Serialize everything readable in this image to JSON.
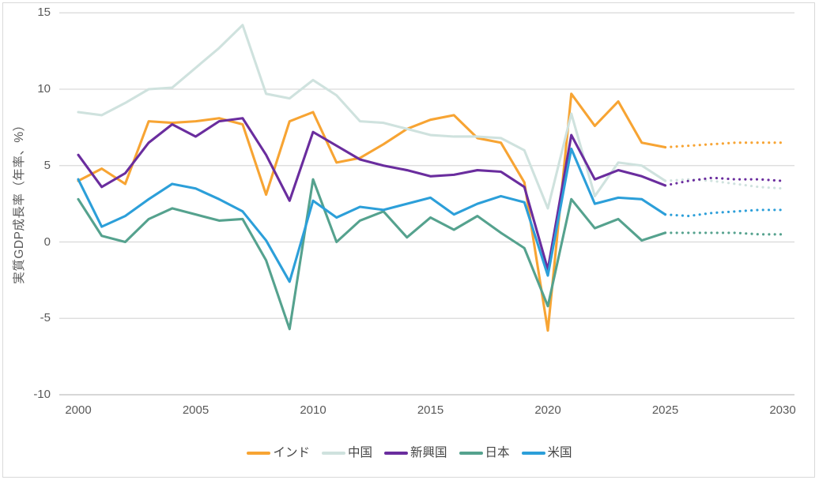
{
  "chart": {
    "y_axis": {
      "label": "実質GDP成長率（年率、%）",
      "ticks": [
        15,
        10,
        5,
        0,
        -5,
        -10
      ],
      "min": -10,
      "max": 15
    },
    "x_axis": {
      "ticks": [
        2000,
        2005,
        2010,
        2015,
        2020,
        2025,
        2030
      ],
      "min": 2000,
      "max": 2030
    }
  },
  "chart_data": {
    "type": "line",
    "title": "",
    "xlabel": "",
    "ylabel": "実質GDP成長率（年率、%）",
    "ylim": [
      -10,
      15
    ],
    "xlim": [
      2000,
      2030
    ],
    "grid": "horizontal",
    "legend_position": "bottom",
    "forecast_start": 2025,
    "forecast_style": "dotted",
    "x": [
      2000,
      2001,
      2002,
      2003,
      2004,
      2005,
      2006,
      2007,
      2008,
      2009,
      2010,
      2011,
      2012,
      2013,
      2014,
      2015,
      2016,
      2017,
      2018,
      2019,
      2020,
      2021,
      2022,
      2023,
      2024,
      2025,
      2026,
      2027,
      2028,
      2029,
      2030
    ],
    "series": [
      {
        "id": "india",
        "name": "インド",
        "color": "#F7A433",
        "values": [
          4.0,
          4.8,
          3.8,
          7.9,
          7.8,
          7.9,
          8.1,
          7.7,
          3.1,
          7.9,
          8.5,
          5.2,
          5.5,
          6.4,
          7.4,
          8.0,
          8.3,
          6.8,
          6.5,
          3.9,
          -5.8,
          9.7,
          7.6,
          9.2,
          6.5,
          6.2,
          6.3,
          6.4,
          6.5,
          6.5,
          6.5
        ]
      },
      {
        "id": "china",
        "name": "中国",
        "color": "#CFE2DE",
        "values": [
          8.5,
          8.3,
          9.1,
          10.0,
          10.1,
          11.4,
          12.7,
          14.2,
          9.7,
          9.4,
          10.6,
          9.6,
          7.9,
          7.8,
          7.4,
          7.0,
          6.9,
          6.9,
          6.8,
          6.0,
          2.2,
          8.4,
          3.0,
          5.2,
          5.0,
          4.0,
          4.1,
          4.0,
          3.8,
          3.6,
          3.5
        ]
      },
      {
        "id": "emerging",
        "name": "新興国",
        "color": "#6A2D9E",
        "values": [
          5.7,
          3.6,
          4.5,
          6.5,
          7.7,
          6.9,
          7.9,
          8.1,
          5.7,
          2.7,
          7.2,
          6.3,
          5.4,
          5.0,
          4.7,
          4.3,
          4.4,
          4.7,
          4.6,
          3.6,
          -1.8,
          7.0,
          4.1,
          4.7,
          4.3,
          3.7,
          4.0,
          4.2,
          4.1,
          4.1,
          4.0
        ]
      },
      {
        "id": "japan",
        "name": "日本",
        "color": "#55A28E",
        "values": [
          2.8,
          0.4,
          0.0,
          1.5,
          2.2,
          1.8,
          1.4,
          1.5,
          -1.2,
          -5.7,
          4.1,
          0.0,
          1.4,
          2.0,
          0.3,
          1.6,
          0.8,
          1.7,
          0.6,
          -0.4,
          -4.2,
          2.8,
          0.9,
          1.5,
          0.1,
          0.6,
          0.6,
          0.6,
          0.6,
          0.5,
          0.5
        ]
      },
      {
        "id": "us",
        "name": "米国",
        "color": "#2C9FD9",
        "values": [
          4.1,
          1.0,
          1.7,
          2.8,
          3.8,
          3.5,
          2.8,
          2.0,
          0.1,
          -2.6,
          2.7,
          1.6,
          2.3,
          2.1,
          2.5,
          2.9,
          1.8,
          2.5,
          3.0,
          2.6,
          -2.2,
          6.1,
          2.5,
          2.9,
          2.8,
          1.8,
          1.7,
          1.9,
          2.0,
          2.1,
          2.1
        ]
      }
    ]
  },
  "colors": {
    "gridline": "#D9D9D9",
    "axis_line": "#BFBFBF",
    "frame_border": "#D9D9D9",
    "tick_text": "#595959",
    "legend_text": "#454545"
  }
}
